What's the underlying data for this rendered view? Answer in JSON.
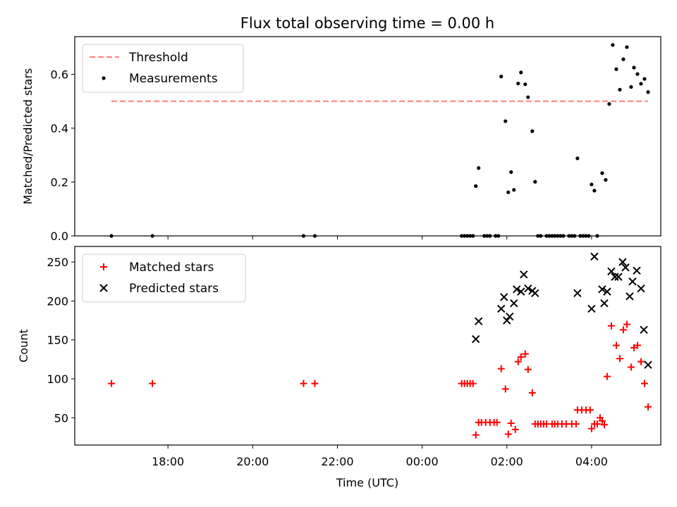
{
  "title": "Flux total observing time = 0.00 h",
  "xlabel": "Time (UTC)",
  "x_tick_labels": [
    "18:00",
    "20:00",
    "22:00",
    "00:00",
    "02:00",
    "04:00"
  ],
  "colors": {
    "threshold": "#ff7f7f",
    "measurement": "#000000",
    "matched": "#ff0000",
    "predicted": "#000000"
  },
  "chart_data": [
    {
      "type": "scatter",
      "ylabel": "Matched/Predicted stars",
      "ylim": [
        0,
        0.74
      ],
      "y_tick_labels": [
        "0.0",
        "0.2",
        "0.4",
        "0.6"
      ],
      "y_ticks": [
        0,
        0.2,
        0.4,
        0.6
      ],
      "legend_position": "top-left",
      "threshold": {
        "name": "Threshold",
        "value": 0.5,
        "x_start": "16:40",
        "x_end": "05:20",
        "style": "dashed"
      },
      "series": [
        {
          "name": "Measurements",
          "marker": "dot",
          "points": [
            [
              "16:40",
              0
            ],
            [
              "17:38",
              0
            ],
            [
              "21:12",
              0
            ],
            [
              "21:28",
              0
            ],
            [
              "00:56",
              0
            ],
            [
              "01:00",
              0
            ],
            [
              "01:04",
              0
            ],
            [
              "01:08",
              0
            ],
            [
              "01:12",
              0
            ],
            [
              "01:16",
              0.185
            ],
            [
              "01:20",
              0.252
            ],
            [
              "01:28",
              0
            ],
            [
              "01:32",
              0
            ],
            [
              "01:36",
              0
            ],
            [
              "01:44",
              0
            ],
            [
              "01:48",
              0
            ],
            [
              "01:52",
              0.592
            ],
            [
              "01:58",
              0.426
            ],
            [
              "02:02",
              0.162
            ],
            [
              "02:06",
              0.237
            ],
            [
              "02:10",
              0.171
            ],
            [
              "02:16",
              0.566
            ],
            [
              "02:20",
              0.607
            ],
            [
              "02:26",
              0.563
            ],
            [
              "02:30",
              0.515
            ],
            [
              "02:36",
              0.389
            ],
            [
              "02:40",
              0.201
            ],
            [
              "02:44",
              0
            ],
            [
              "02:48",
              0
            ],
            [
              "02:56",
              0
            ],
            [
              "03:00",
              0
            ],
            [
              "03:04",
              0
            ],
            [
              "03:08",
              0
            ],
            [
              "03:12",
              0
            ],
            [
              "03:16",
              0
            ],
            [
              "03:20",
              0
            ],
            [
              "03:28",
              0
            ],
            [
              "03:32",
              0
            ],
            [
              "03:36",
              0
            ],
            [
              "03:44",
              0
            ],
            [
              "03:40",
              0.288
            ],
            [
              "03:48",
              0
            ],
            [
              "03:52",
              0
            ],
            [
              "03:56",
              0
            ],
            [
              "04:00",
              0.191
            ],
            [
              "04:04",
              0.168
            ],
            [
              "04:08",
              0
            ],
            [
              "04:15",
              0.233
            ],
            [
              "04:20",
              0.208
            ],
            [
              "04:25",
              0.49
            ],
            [
              "04:30",
              0.709
            ],
            [
              "04:35",
              0.619
            ],
            [
              "04:40",
              0.543
            ],
            [
              "04:45",
              0.656
            ],
            [
              "04:50",
              0.701
            ],
            [
              "04:56",
              0.553
            ],
            [
              "05:00",
              0.625
            ],
            [
              "05:05",
              0.601
            ],
            [
              "05:10",
              0.565
            ],
            [
              "05:15",
              0.583
            ],
            [
              "05:20",
              0.534
            ]
          ]
        }
      ]
    },
    {
      "type": "scatter",
      "ylabel": "Count",
      "ylim": [
        15,
        270
      ],
      "y_tick_labels": [
        "50",
        "100",
        "150",
        "200",
        "250"
      ],
      "y_ticks": [
        50,
        100,
        150,
        200,
        250
      ],
      "legend_position": "top-left",
      "series": [
        {
          "name": "Matched stars",
          "marker": "plus",
          "points": [
            [
              "16:40",
              94
            ],
            [
              "17:38",
              94
            ],
            [
              "21:12",
              94
            ],
            [
              "21:28",
              94
            ],
            [
              "00:56",
              94
            ],
            [
              "01:00",
              94
            ],
            [
              "01:04",
              94
            ],
            [
              "01:08",
              94
            ],
            [
              "01:12",
              94
            ],
            [
              "01:16",
              28
            ],
            [
              "01:20",
              44
            ],
            [
              "01:24",
              44
            ],
            [
              "01:30",
              44
            ],
            [
              "01:36",
              44
            ],
            [
              "01:42",
              44
            ],
            [
              "01:46",
              44
            ],
            [
              "01:52",
              113
            ],
            [
              "01:58",
              87
            ],
            [
              "02:02",
              29
            ],
            [
              "02:06",
              43
            ],
            [
              "02:12",
              35
            ],
            [
              "02:16",
              122
            ],
            [
              "02:20",
              128
            ],
            [
              "02:26",
              132
            ],
            [
              "02:30",
              112
            ],
            [
              "02:36",
              82
            ],
            [
              "02:40",
              42
            ],
            [
              "02:44",
              42
            ],
            [
              "02:48",
              42
            ],
            [
              "02:52",
              42
            ],
            [
              "02:56",
              42
            ],
            [
              "03:04",
              42
            ],
            [
              "03:08",
              42
            ],
            [
              "03:12",
              42
            ],
            [
              "03:18",
              42
            ],
            [
              "03:24",
              42
            ],
            [
              "03:32",
              42
            ],
            [
              "03:38",
              42
            ],
            [
              "03:40",
              60
            ],
            [
              "03:46",
              60
            ],
            [
              "03:52",
              60
            ],
            [
              "03:58",
              60
            ],
            [
              "04:00",
              36
            ],
            [
              "04:04",
              42
            ],
            [
              "04:08",
              42
            ],
            [
              "04:12",
              50
            ],
            [
              "04:15",
              46
            ],
            [
              "04:18",
              41
            ],
            [
              "04:22",
              103
            ],
            [
              "04:28",
              168
            ],
            [
              "04:35",
              143
            ],
            [
              "04:40",
              126
            ],
            [
              "04:45",
              163
            ],
            [
              "04:50",
              170
            ],
            [
              "04:56",
              115
            ],
            [
              "05:00",
              140
            ],
            [
              "05:05",
              143
            ],
            [
              "05:10",
              122
            ],
            [
              "05:15",
              94
            ],
            [
              "05:20",
              64
            ]
          ]
        },
        {
          "name": "Predicted stars",
          "marker": "x",
          "points": [
            [
              "01:16",
              151
            ],
            [
              "01:20",
              174
            ],
            [
              "01:52",
              190
            ],
            [
              "01:56",
              205
            ],
            [
              "02:00",
              175
            ],
            [
              "02:04",
              180
            ],
            [
              "02:10",
              197
            ],
            [
              "02:14",
              215
            ],
            [
              "02:20",
              212
            ],
            [
              "02:24",
              234
            ],
            [
              "02:30",
              216
            ],
            [
              "02:36",
              213
            ],
            [
              "02:40",
              210
            ],
            [
              "03:40",
              210
            ],
            [
              "04:00",
              190
            ],
            [
              "04:04",
              257
            ],
            [
              "04:15",
              215
            ],
            [
              "04:18",
              197
            ],
            [
              "04:22",
              212
            ],
            [
              "04:28",
              238
            ],
            [
              "04:33",
              231
            ],
            [
              "04:38",
              231
            ],
            [
              "04:44",
              250
            ],
            [
              "04:48",
              243
            ],
            [
              "04:54",
              206
            ],
            [
              "04:58",
              225
            ],
            [
              "05:04",
              239
            ],
            [
              "05:10",
              216
            ],
            [
              "05:14",
              163
            ],
            [
              "05:20",
              118
            ]
          ]
        }
      ]
    }
  ]
}
